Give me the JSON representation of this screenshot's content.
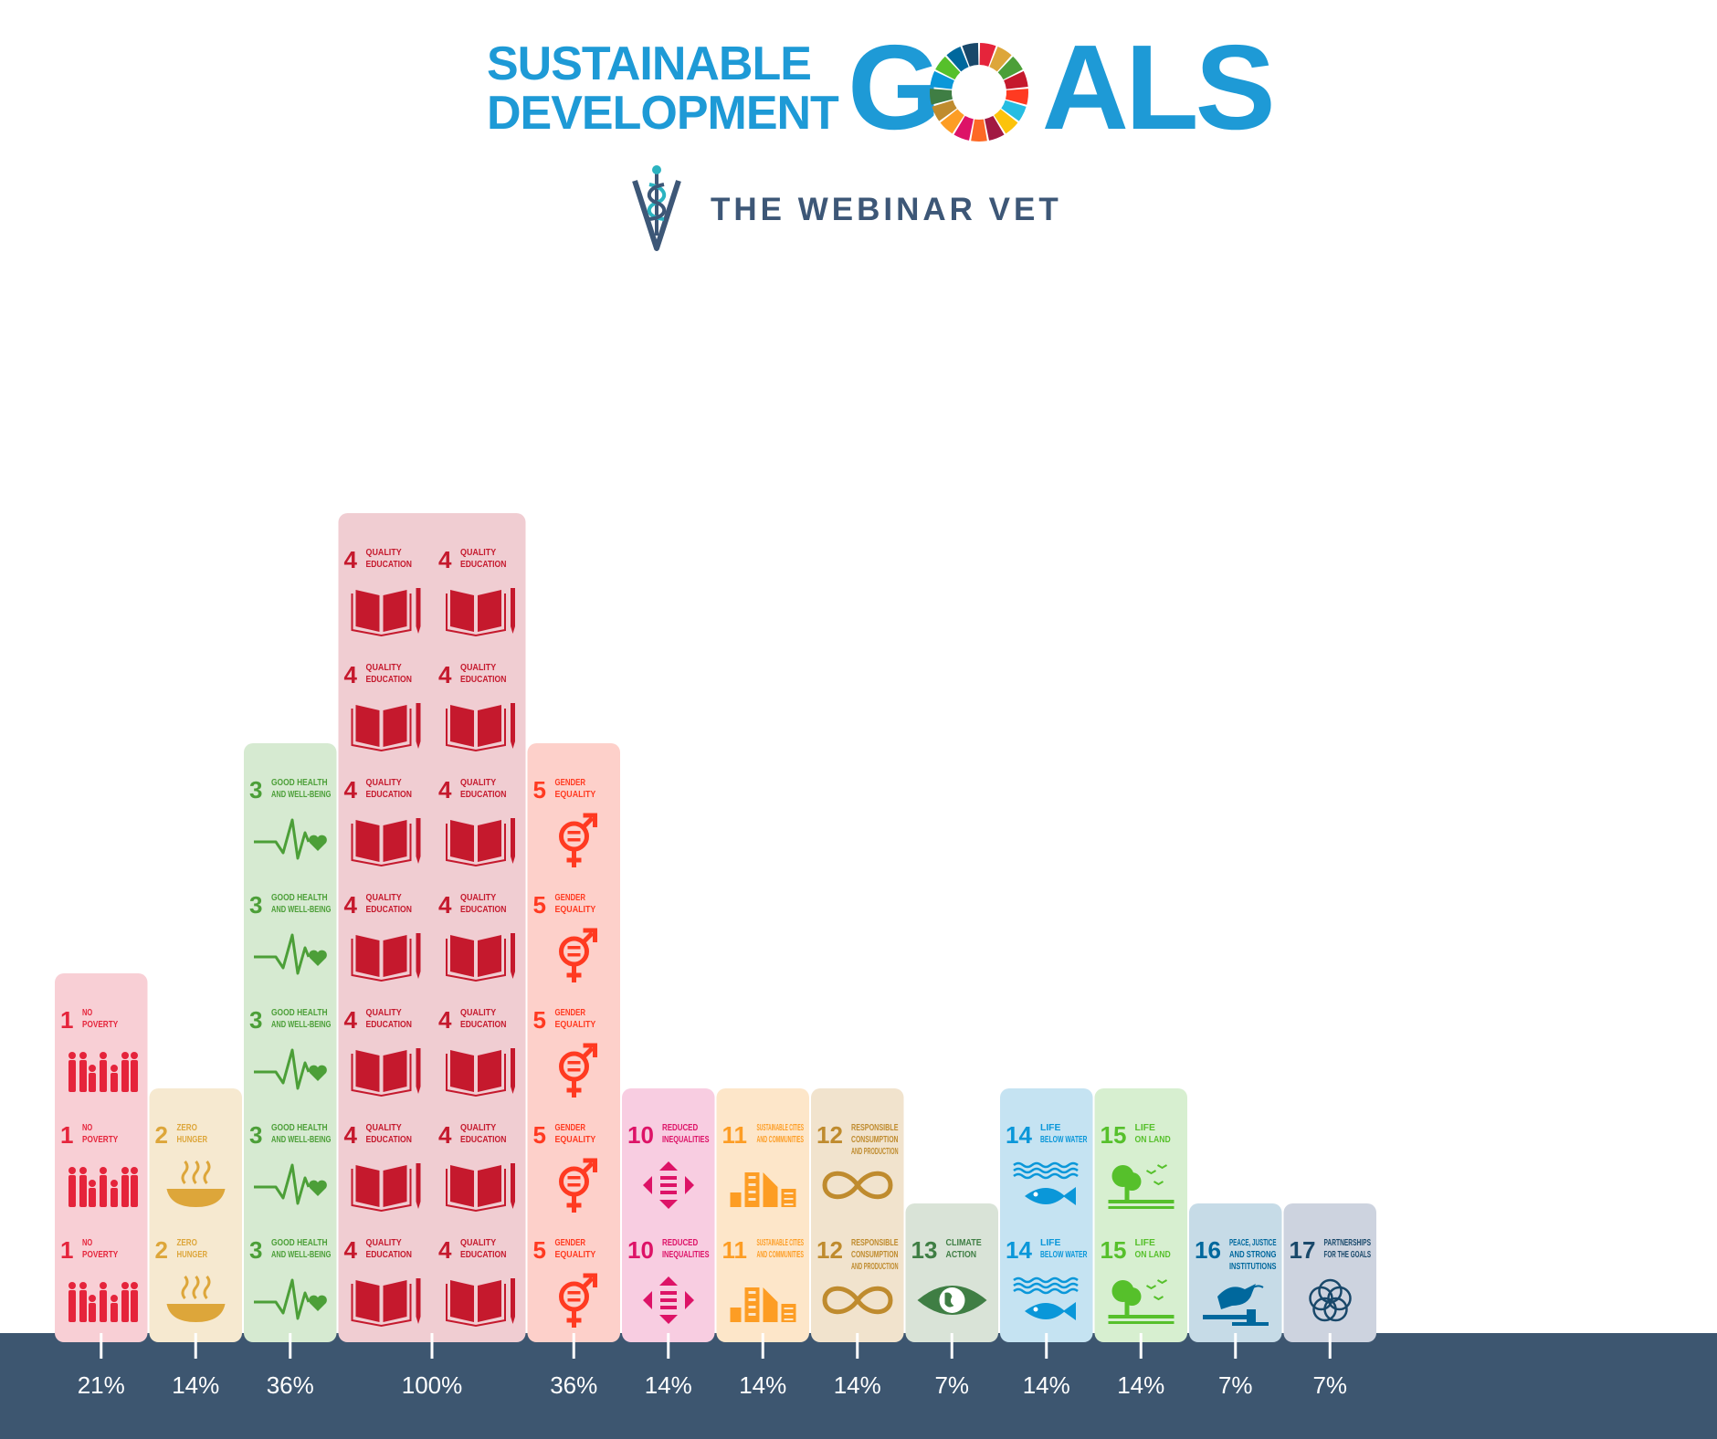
{
  "header": {
    "line1": "SUSTAINABLE",
    "line2": "DEVELOPMENT",
    "goals_g": "G",
    "goals_rest": "ALS",
    "org_name": "THE WEBINAR VET"
  },
  "colors": {
    "brand_blue": "#1e9ad6",
    "org_text": "#3d5777",
    "axis_bar": "#3d5670",
    "axis_text": "#ffffff",
    "wheel": [
      "#e5243b",
      "#dda63a",
      "#4c9f38",
      "#c5192d",
      "#ff3a21",
      "#26bde2",
      "#fcc30b",
      "#a21942",
      "#fd6925",
      "#dd1367",
      "#fd9d24",
      "#bf8b2e",
      "#3f7e44",
      "#0a97d9",
      "#56c02b",
      "#00689d",
      "#19486a"
    ]
  },
  "chart_data": {
    "type": "bar",
    "title": "",
    "xlabel": "",
    "ylabel": "",
    "ylim": [
      0,
      100
    ],
    "grid": false,
    "legend": "none",
    "value_suffix": "%",
    "categories": [
      {
        "goal": 1,
        "label": "NO POVERTY",
        "lines": [
          "NO",
          "POVERTY"
        ],
        "value": 21,
        "icons": 3,
        "color": "#e5243b",
        "bg": "#f8cfd5",
        "icon": "people-icon"
      },
      {
        "goal": 2,
        "label": "ZERO HUNGER",
        "lines": [
          "ZERO",
          "HUNGER"
        ],
        "value": 14,
        "icons": 2,
        "color": "#dda63a",
        "bg": "#f6e9d0",
        "icon": "bowl-icon"
      },
      {
        "goal": 3,
        "label": "GOOD HEALTH AND WELL-BEING",
        "lines": [
          "GOOD HEALTH",
          "AND WELL-BEING"
        ],
        "value": 36,
        "icons": 5,
        "color": "#4c9f38",
        "bg": "#d6ead1",
        "icon": "heartbeat-icon"
      },
      {
        "goal": 4,
        "label": "QUALITY EDUCATION",
        "lines": [
          "QUALITY",
          "EDUCATION"
        ],
        "value": 100,
        "icons": 14,
        "color": "#c5192d",
        "bg": "#f0cdd2",
        "icon": "book-icon"
      },
      {
        "goal": 5,
        "label": "GENDER EQUALITY",
        "lines": [
          "GENDER",
          "EQUALITY"
        ],
        "value": 36,
        "icons": 5,
        "color": "#ff3a21",
        "bg": "#fdd0ca",
        "icon": "gender-icon"
      },
      {
        "goal": 10,
        "label": "REDUCED INEQUALITIES",
        "lines": [
          "REDUCED",
          "INEQUALITIES"
        ],
        "value": 14,
        "icons": 2,
        "color": "#dd1367",
        "bg": "#f8cde1",
        "icon": "equality-arrows-icon"
      },
      {
        "goal": 11,
        "label": "SUSTAINABLE CITIES AND COMMUNITIES",
        "lines": [
          "SUSTAINABLE CITIES",
          "AND COMMUNITIES"
        ],
        "value": 14,
        "icons": 2,
        "color": "#fd9d24",
        "bg": "#fde6c9",
        "icon": "city-icon"
      },
      {
        "goal": 12,
        "label": "RESPONSIBLE CONSUMPTION AND PRODUCTION",
        "lines": [
          "RESPONSIBLE",
          "CONSUMPTION",
          "AND PRODUCTION"
        ],
        "value": 14,
        "icons": 2,
        "color": "#bf8b2e",
        "bg": "#f1e3cd",
        "icon": "infinity-icon"
      },
      {
        "goal": 13,
        "label": "CLIMATE ACTION",
        "lines": [
          "CLIMATE",
          "ACTION"
        ],
        "value": 7,
        "icons": 1,
        "color": "#3f7e44",
        "bg": "#d9e3d7",
        "icon": "eye-globe-icon"
      },
      {
        "goal": 14,
        "label": "LIFE BELOW WATER",
        "lines": [
          "LIFE",
          "BELOW WATER"
        ],
        "value": 14,
        "icons": 2,
        "color": "#0a97d9",
        "bg": "#c5e3f2",
        "icon": "fish-icon"
      },
      {
        "goal": 15,
        "label": "LIFE ON LAND",
        "lines": [
          "LIFE",
          "ON LAND"
        ],
        "value": 14,
        "icons": 2,
        "color": "#56c02b",
        "bg": "#d7efd0",
        "icon": "tree-icon"
      },
      {
        "goal": 16,
        "label": "PEACE, JUSTICE AND STRONG INSTITUTIONS",
        "lines": [
          "PEACE, JUSTICE",
          "AND STRONG",
          "INSTITUTIONS"
        ],
        "value": 7,
        "icons": 1,
        "color": "#00689d",
        "bg": "#c6dbe7",
        "icon": "dove-gavel-icon"
      },
      {
        "goal": 17,
        "label": "PARTNERSHIPS FOR THE GOALS",
        "lines": [
          "PARTNERSHIPS",
          "FOR THE GOALS"
        ],
        "value": 7,
        "icons": 1,
        "color": "#19486a",
        "bg": "#cdd3df",
        "icon": "rings-icon"
      }
    ],
    "values": [
      21,
      14,
      36,
      100,
      36,
      14,
      14,
      14,
      7,
      14,
      14,
      7,
      7
    ]
  }
}
